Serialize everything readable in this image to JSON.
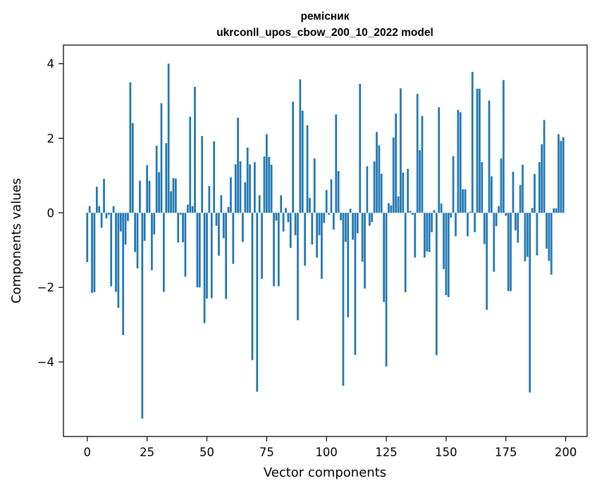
{
  "chart_data": {
    "type": "bar",
    "title": "ремісник",
    "subtitle": "ukrconll_upos_cbow_200_10_2022 model",
    "xlabel": "Vector components",
    "ylabel": "Components values",
    "xlim": [
      -9.95,
      208.95
    ],
    "ylim": [
      -6.0,
      4.5
    ],
    "xticks": [
      0,
      25,
      50,
      75,
      100,
      125,
      150,
      175,
      200
    ],
    "yticks": [
      -4,
      -2,
      0,
      2,
      4
    ],
    "ytick_labels": [
      "−4",
      "−2",
      "0",
      "2",
      "4"
    ],
    "bar_color": "#1f77b4",
    "bar_width": 0.8,
    "grid": false,
    "values": [
      -1.32,
      0.18,
      -2.15,
      -2.13,
      0.7,
      0.18,
      -0.4,
      0.91,
      -0.15,
      -0.05,
      -1.97,
      0.18,
      -2.12,
      -2.55,
      -0.5,
      -3.28,
      -0.85,
      -0.22,
      3.5,
      2.41,
      -1.05,
      -1.49,
      0.86,
      -5.52,
      -0.75,
      1.28,
      0.86,
      -1.54,
      -0.58,
      1.8,
      1.09,
      2.94,
      -2.12,
      1.87,
      4.0,
      0.58,
      0.93,
      0.92,
      -0.8,
      -0.05,
      -0.79,
      -1.71,
      0.22,
      2.58,
      0.18,
      3.38,
      -2.0,
      -2.0,
      2.06,
      -2.96,
      -2.3,
      0.72,
      -2.29,
      1.92,
      -0.35,
      -1.15,
      0.47,
      -0.68,
      -2.31,
      0.16,
      0.95,
      -1.37,
      1.3,
      2.55,
      1.38,
      -0.78,
      0.82,
      1.75,
      1.3,
      -3.95,
      1.36,
      -4.8,
      0.47,
      -1.77,
      1.51,
      2.11,
      1.5,
      1.29,
      -1.97,
      -0.21,
      -1.97,
      0.47,
      -0.5,
      0.13,
      -0.25,
      -0.94,
      2.98,
      -0.6,
      -2.88,
      3.58,
      2.74,
      -1.42,
      2.35,
      0.4,
      -0.85,
      1.46,
      -1.2,
      -0.6,
      -1.77,
      -0.27,
      0.61,
      -0.05,
      0.9,
      -0.45,
      2.64,
      1.12,
      -0.2,
      -4.64,
      -0.78,
      -2.8,
      0.11,
      -0.72,
      -3.81,
      -0.55,
      3.46,
      -1.31,
      -2.03,
      1.25,
      -0.35,
      -0.25,
      1.38,
      2.17,
      1.81,
      1.05,
      -2.39,
      -4.12,
      0.26,
      0.2,
      2.02,
      2.66,
      0.44,
      3.34,
      1.08,
      -2.13,
      1.18,
      0.05,
      -0.05,
      -1.2,
      3.19,
      1.68,
      2.6,
      -1.2,
      -1.04,
      -1.05,
      -0.52,
      0.07,
      -3.82,
      2.83,
      0.25,
      -1.51,
      -2.21,
      -2.26,
      -0.13,
      1.52,
      -0.63,
      2.76,
      2.7,
      0.63,
      0.63,
      -0.63,
      0.03,
      3.78,
      -0.52,
      3.33,
      3.33,
      1.36,
      -0.84,
      -2.6,
      3.01,
      0.98,
      -1.58,
      -0.36,
      0.18,
      1.46,
      3.56,
      -0.08,
      -2.1,
      -2.1,
      1.1,
      -0.47,
      -0.8,
      0.75,
      1.29,
      -1.3,
      -1.18,
      -4.82,
      0.13,
      1.04,
      -1.14,
      1.36,
      1.84,
      2.49,
      -0.96,
      -1.29,
      -1.66,
      0.12,
      0.12,
      2.11,
      1.93,
      2.03
    ]
  }
}
